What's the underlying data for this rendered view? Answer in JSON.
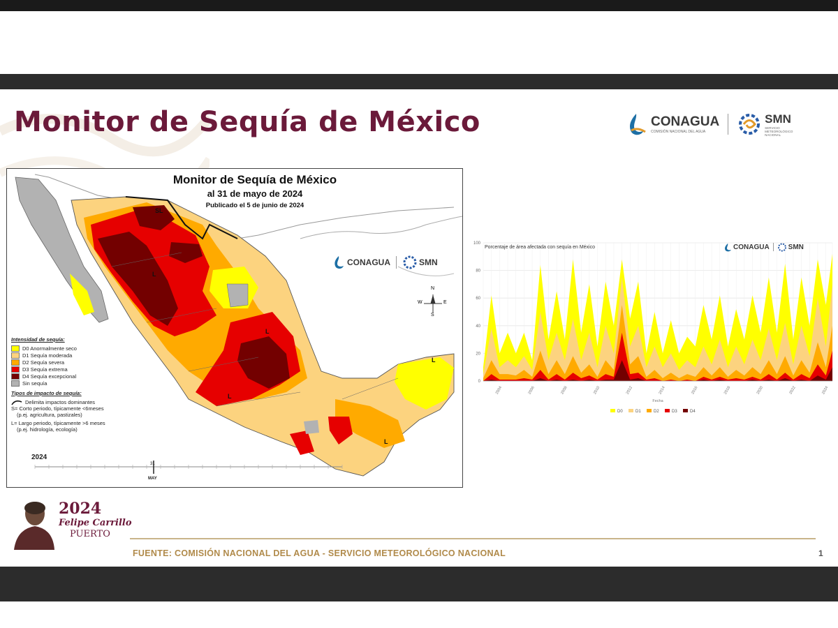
{
  "slide": {
    "title": "Monitor de Sequía de México",
    "logos": {
      "conagua": "CONAGUA",
      "conagua_sub": "COMISIÓN NACIONAL DEL AGUA",
      "smn": "SMN",
      "smn_sub": "SERVICIO METEOROLÓGICO NACIONAL"
    },
    "footer": "FUENTE: COMISIÓN NACIONAL DEL AGUA - SERVICIO METEOROLÓGICO NACIONAL",
    "page_number": "1",
    "seal": {
      "year": "2024",
      "name_line1": "Felipe Carrillo",
      "name_line2": "PUERTO"
    }
  },
  "map": {
    "title": "Monitor de Sequía de México",
    "subtitle": "al 31 de mayo de 2024",
    "published": "Publicado el 5 de junio de 2024",
    "compass": {
      "n": "N",
      "s": "S",
      "e": "E",
      "w": "W"
    },
    "labels": {
      "sl": "SL",
      "l": "L"
    },
    "legend": {
      "intensity_header": "Intensidad de sequía:",
      "items": [
        {
          "label": "D0 Anormalmente seco",
          "color": "#ffff00"
        },
        {
          "label": "D1 Sequía moderada",
          "color": "#fcd37f"
        },
        {
          "label": "D2 Sequía severa",
          "color": "#ffaa00"
        },
        {
          "label": "D3 Sequía extrema",
          "color": "#e60000"
        },
        {
          "label": "D4 Sequía excepcional",
          "color": "#730000"
        },
        {
          "label": "Sin sequía",
          "color": "#b2b2b2"
        }
      ],
      "impact_header": "Tipos de impacto de sequía:",
      "impact_line": "Delimita impactos dominantes",
      "short_term": "S= Corto periodo, típicamente <6meses",
      "short_term_ex": "(p.ej. agricultura, pastizales)",
      "long_term": "L= Largo periodo, típicamente >6 meses",
      "long_term_ex": "(p.ej. hidrología, ecología)"
    },
    "timeline": {
      "year": "2024",
      "marker_day": "31",
      "marker_month": "MAY"
    }
  },
  "chart_data": {
    "type": "area",
    "title": "Porcentaje de área afectada con sequía en México",
    "xlabel": "Fecha",
    "ylabel": "",
    "ylim": [
      0,
      100
    ],
    "yticks": [
      0,
      20,
      40,
      60,
      80,
      100
    ],
    "xticks": [
      "2004",
      "2006",
      "2008",
      "2010",
      "2012",
      "2014",
      "2016",
      "2018",
      "2020",
      "2022",
      "2024"
    ],
    "x": [
      2003.0,
      2003.5,
      2004.0,
      2004.5,
      2005.0,
      2005.5,
      2006.0,
      2006.5,
      2007.0,
      2007.5,
      2008.0,
      2008.5,
      2009.0,
      2009.5,
      2010.0,
      2010.5,
      2011.0,
      2011.5,
      2012.0,
      2012.5,
      2013.0,
      2013.5,
      2014.0,
      2014.5,
      2015.0,
      2015.5,
      2016.0,
      2016.5,
      2017.0,
      2017.5,
      2018.0,
      2018.5,
      2019.0,
      2019.5,
      2020.0,
      2020.5,
      2021.0,
      2021.5,
      2022.0,
      2022.5,
      2023.0,
      2023.5,
      2024.0,
      2024.4
    ],
    "series": [
      {
        "name": "D0",
        "color": "#ffff00",
        "values": [
          10,
          62,
          20,
          35,
          20,
          35,
          15,
          84,
          30,
          65,
          30,
          88,
          35,
          70,
          25,
          72,
          40,
          88,
          45,
          72,
          20,
          50,
          20,
          44,
          20,
          32,
          25,
          55,
          30,
          62,
          25,
          52,
          30,
          62,
          35,
          75,
          35,
          85,
          30,
          75,
          40,
          88,
          55,
          92
        ]
      },
      {
        "name": "D1",
        "color": "#fcd37f",
        "values": [
          5,
          38,
          10,
          15,
          10,
          18,
          8,
          50,
          15,
          35,
          15,
          45,
          15,
          35,
          10,
          40,
          20,
          75,
          25,
          40,
          10,
          25,
          10,
          20,
          8,
          15,
          10,
          25,
          12,
          30,
          10,
          25,
          12,
          30,
          15,
          38,
          15,
          42,
          12,
          40,
          18,
          60,
          25,
          70
        ]
      },
      {
        "name": "D2",
        "color": "#ffaa00",
        "values": [
          2,
          15,
          5,
          5,
          4,
          8,
          3,
          22,
          5,
          15,
          5,
          18,
          6,
          12,
          3,
          15,
          8,
          55,
          12,
          18,
          3,
          8,
          2,
          6,
          2,
          5,
          3,
          10,
          4,
          10,
          3,
          8,
          4,
          10,
          5,
          15,
          5,
          18,
          4,
          15,
          6,
          28,
          10,
          40
        ]
      },
      {
        "name": "D3",
        "color": "#e60000",
        "values": [
          0,
          5,
          1,
          1,
          1,
          2,
          1,
          8,
          1,
          5,
          1,
          6,
          2,
          4,
          1,
          5,
          3,
          35,
          5,
          6,
          1,
          2,
          0,
          1,
          0,
          1,
          0,
          3,
          1,
          3,
          1,
          2,
          1,
          3,
          1,
          5,
          1,
          6,
          1,
          5,
          2,
          12,
          4,
          22
        ]
      },
      {
        "name": "D4",
        "color": "#730000",
        "values": [
          0,
          1,
          0,
          0,
          0,
          0,
          0,
          2,
          0,
          1,
          0,
          1,
          0,
          1,
          0,
          1,
          1,
          15,
          1,
          2,
          0,
          0,
          0,
          0,
          0,
          0,
          0,
          1,
          0,
          1,
          0,
          0,
          0,
          1,
          0,
          1,
          0,
          2,
          0,
          1,
          0,
          4,
          1,
          10
        ]
      }
    ],
    "legend_position": "bottom",
    "grid": true
  }
}
